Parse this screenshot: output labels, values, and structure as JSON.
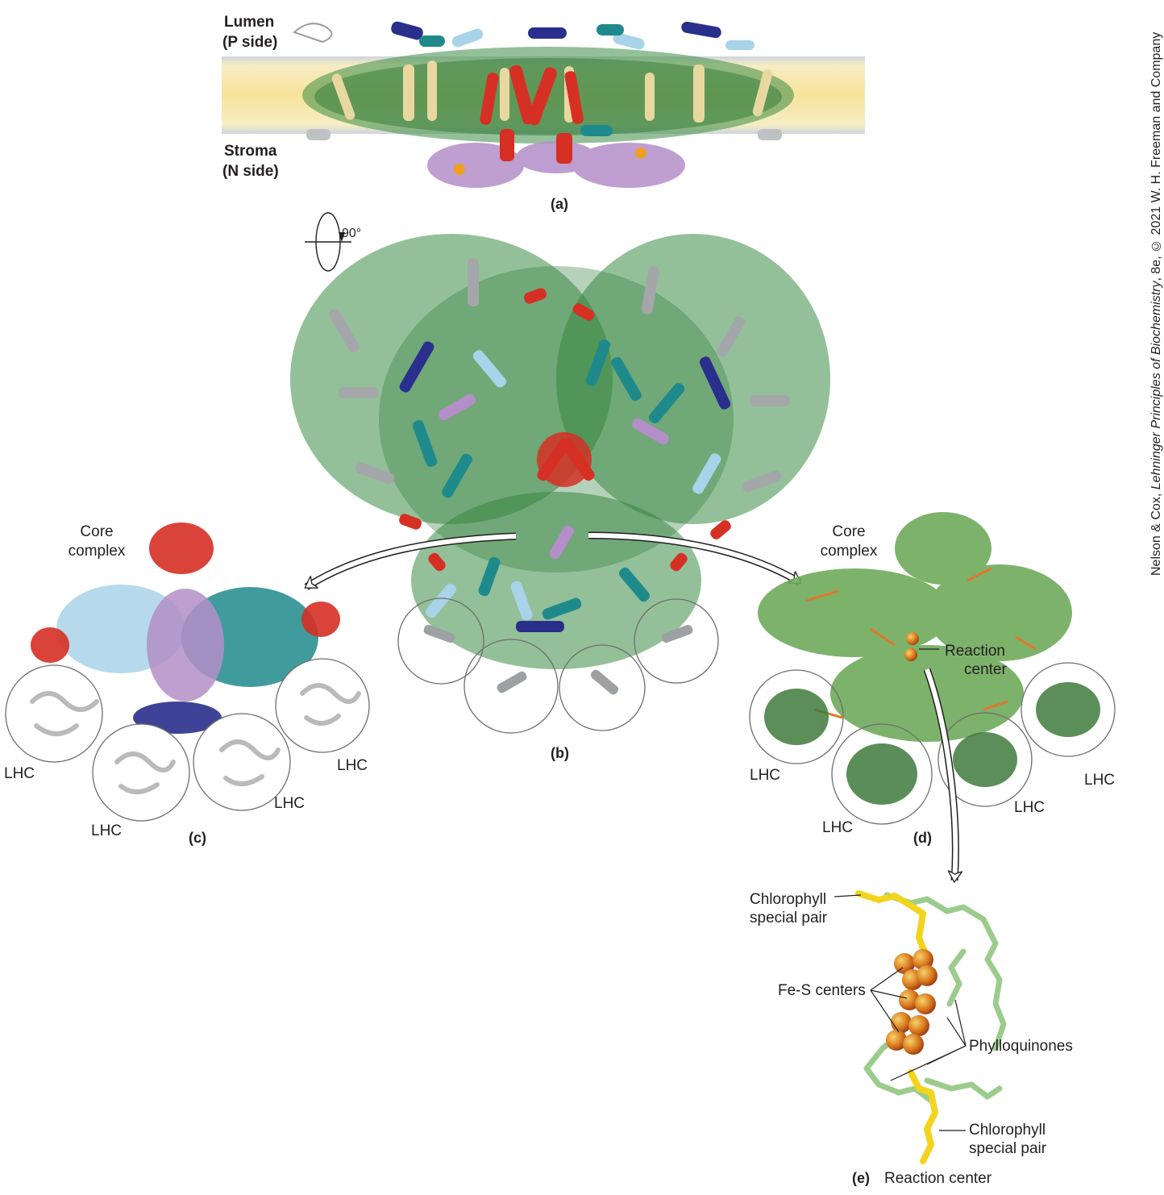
{
  "panel_a": {
    "label": "(a)",
    "lumen_line1": "Lumen",
    "lumen_line2": "(P side)",
    "stroma_line1": "Stroma",
    "stroma_line2": "(N side)"
  },
  "rotation": {
    "label": "90°"
  },
  "panel_b": {
    "label": "(b)"
  },
  "panel_c": {
    "label": "(c)",
    "core_line1": "Core",
    "core_line2": "complex",
    "lhc": [
      "LHC",
      "LHC",
      "LHC",
      "LHC"
    ]
  },
  "panel_d": {
    "label": "(d)",
    "core_line1": "Core",
    "core_line2": "complex",
    "rc_line1": "Reaction",
    "rc_line2": "center",
    "lhc": [
      "LHC",
      "LHC",
      "LHC",
      "LHC"
    ]
  },
  "panel_e": {
    "label": "(e)",
    "title": "Reaction center",
    "chl_top_line1": "Chlorophyll",
    "chl_top_line2": "special pair",
    "fes": "Fe-S centers",
    "phyllo": "Phylloquinones",
    "chl_bottom_line1": "Chlorophyll",
    "chl_bottom_line2": "special pair"
  },
  "credit": {
    "part1": "Nelson & Cox, ",
    "part2": "Lehninger Principles of Biochemistry",
    "part3": ", 8e, © 2021 W. H. Freeman and Company"
  },
  "colors": {
    "membrane": "#f7e39a",
    "chlorophyll": "#3c8c45",
    "carotenoid": "#f0a020",
    "psaA": "#1f8a8c",
    "psaB": "#a9d3e8",
    "psaC": "#b38ec8",
    "red_subunit": "#d62f24",
    "dark_blue": "#2a2f8c",
    "lhc_grey": "#b8babc",
    "light_green": "#9ccc8c",
    "yellow_chl": "#f2d41c",
    "fes_orange": "#d95a1c"
  }
}
